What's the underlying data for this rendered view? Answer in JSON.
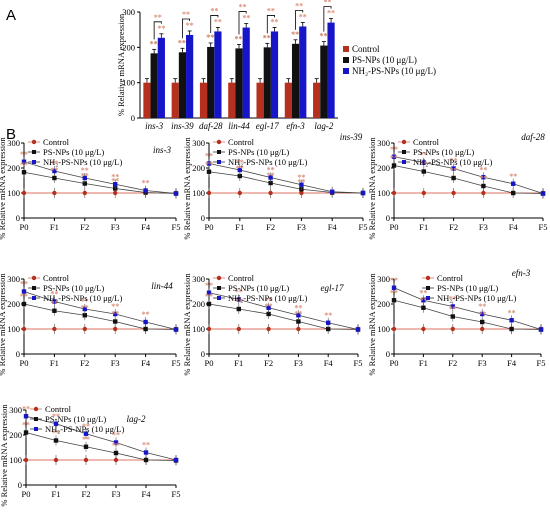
{
  "panel_a_label": "A",
  "panel_b_label": "B",
  "colors": {
    "control": "#b5301e",
    "ps": "#111111",
    "nh2": "#1616c8",
    "star_control_ps": "#c97a5a",
    "star_ps_nh2": "#9ab86a",
    "star_default": "#d9907a",
    "connector": "#555555",
    "control_line": "#e07060"
  },
  "chart_data": [
    {
      "type": "bar",
      "panel": "A",
      "ylabel": "% Relative mRNA expression",
      "ylim": [
        0,
        300
      ],
      "yticks": [
        0,
        100,
        200,
        300
      ],
      "categories": [
        "ins-3",
        "ins-39",
        "daf-28",
        "lin-44",
        "egl-17",
        "efn-3",
        "lag-2"
      ],
      "series": [
        {
          "name": "Control",
          "key": "control",
          "values": [
            100,
            100,
            100,
            100,
            100,
            100,
            100
          ]
        },
        {
          "name": "PS-NPs (10 μg/L)",
          "key": "ps",
          "values": [
            183,
            186,
            201,
            197,
            200,
            210,
            205
          ]
        },
        {
          "name": "NH₂-PS-NPs (10 μg/L)",
          "key": "nh2",
          "values": [
            227,
            235,
            245,
            256,
            245,
            259,
            270
          ]
        }
      ],
      "legend": "right"
    },
    {
      "type": "line",
      "panel": "B",
      "gene": "ins-3",
      "ylabel": "% Relative mRNA expression",
      "ylim": [
        0,
        300
      ],
      "yticks": [
        0,
        100,
        200,
        300
      ],
      "x": [
        "P0",
        "F1",
        "F2",
        "F3",
        "F4",
        "F5"
      ],
      "series": [
        {
          "name": "Control",
          "key": "control",
          "values": [
            100,
            100,
            100,
            100,
            100,
            100
          ]
        },
        {
          "name": "PS-NPs (10 μg/L)",
          "key": "ps",
          "values": [
            183,
            160,
            138,
            118,
            102,
            98
          ]
        },
        {
          "name": "NH₂-PS-NPs (10 μg/L)",
          "key": "nh2",
          "values": [
            225,
            188,
            160,
            135,
            110,
            98
          ]
        }
      ],
      "legend": "top-left"
    },
    {
      "type": "line",
      "panel": "B",
      "gene": "ins-39",
      "ylabel": "% Relative mRNA expression",
      "ylim": [
        0,
        300
      ],
      "yticks": [
        0,
        100,
        200,
        300
      ],
      "x": [
        "P0",
        "F1",
        "F2",
        "F3",
        "F4",
        "F5"
      ],
      "series": [
        {
          "name": "Control",
          "key": "control",
          "values": [
            100,
            100,
            100,
            100,
            100,
            100
          ]
        },
        {
          "name": "PS-NPs (10 μg/L)",
          "key": "ps",
          "values": [
            185,
            168,
            140,
            115,
            102,
            100
          ]
        },
        {
          "name": "NH₂-PS-NPs (10 μg/L)",
          "key": "nh2",
          "values": [
            218,
            192,
            162,
            133,
            105,
            100
          ]
        }
      ],
      "legend": "top-left"
    },
    {
      "type": "line",
      "panel": "B",
      "gene": "daf-28",
      "ylabel": "% Relative mRNA expression",
      "ylim": [
        0,
        300
      ],
      "yticks": [
        0,
        100,
        200,
        300
      ],
      "x": [
        "P0",
        "F1",
        "F2",
        "F3",
        "F4",
        "F5"
      ],
      "series": [
        {
          "name": "Control",
          "key": "control",
          "values": [
            100,
            100,
            100,
            100,
            100,
            100
          ]
        },
        {
          "name": "PS-NPs (10 μg/L)",
          "key": "ps",
          "values": [
            210,
            186,
            160,
            128,
            100,
            98
          ]
        },
        {
          "name": "NH₂-PS-NPs (10 μg/L)",
          "key": "nh2",
          "values": [
            245,
            222,
            198,
            163,
            137,
            98
          ]
        }
      ],
      "legend": "top-left"
    },
    {
      "type": "line",
      "panel": "B",
      "gene": "lin-44",
      "ylabel": "% Relative mRNA expression",
      "ylim": [
        0,
        300
      ],
      "yticks": [
        0,
        100,
        200,
        300
      ],
      "x": [
        "P0",
        "F1",
        "F2",
        "F3",
        "F4",
        "F5"
      ],
      "series": [
        {
          "name": "Control",
          "key": "control",
          "values": [
            100,
            100,
            100,
            100,
            100,
            100
          ]
        },
        {
          "name": "PS-NPs (10 μg/L)",
          "key": "ps",
          "values": [
            200,
            173,
            155,
            130,
            100,
            98
          ]
        },
        {
          "name": "NH₂-PS-NPs (10 μg/L)",
          "key": "nh2",
          "values": [
            250,
            210,
            180,
            160,
            128,
            98
          ]
        }
      ],
      "legend": "top-left"
    },
    {
      "type": "line",
      "panel": "B",
      "gene": "egl-17",
      "ylabel": "% Relative mRNA expression",
      "ylim": [
        0,
        300
      ],
      "yticks": [
        0,
        100,
        200,
        300
      ],
      "x": [
        "P0",
        "F1",
        "F2",
        "F3",
        "F4",
        "F5"
      ],
      "series": [
        {
          "name": "Control",
          "key": "control",
          "values": [
            100,
            100,
            100,
            100,
            100,
            100
          ]
        },
        {
          "name": "PS-NPs (10 μg/L)",
          "key": "ps",
          "values": [
            200,
            180,
            160,
            130,
            100,
            98
          ]
        },
        {
          "name": "NH₂-PS-NPs (10 μg/L)",
          "key": "nh2",
          "values": [
            245,
            218,
            185,
            155,
            125,
            98
          ]
        }
      ],
      "legend": "top-left"
    },
    {
      "type": "line",
      "panel": "B",
      "gene": "efn-3",
      "ylabel": "% Relative mRNA expression",
      "ylim": [
        0,
        300
      ],
      "yticks": [
        0,
        100,
        200,
        300
      ],
      "x": [
        "P0",
        "F1",
        "F2",
        "F3",
        "F4",
        "F5"
      ],
      "series": [
        {
          "name": "Control",
          "key": "control",
          "values": [
            100,
            100,
            100,
            100,
            100,
            100
          ]
        },
        {
          "name": "PS-NPs (10 μg/L)",
          "key": "ps",
          "values": [
            215,
            185,
            150,
            128,
            100,
            98
          ]
        },
        {
          "name": "NH₂-PS-NPs (10 μg/L)",
          "key": "nh2",
          "values": [
            265,
            215,
            190,
            160,
            135,
            98
          ]
        }
      ],
      "legend": "top-right"
    },
    {
      "type": "line",
      "panel": "B",
      "gene": "lag-2",
      "ylabel": "% Relative mRNA expression",
      "ylim": [
        0,
        300
      ],
      "yticks": [
        0,
        100,
        200,
        300
      ],
      "x": [
        "P0",
        "F1",
        "F2",
        "F3",
        "F4",
        "F5"
      ],
      "series": [
        {
          "name": "Control",
          "key": "control",
          "values": [
            100,
            100,
            100,
            100,
            100,
            100
          ]
        },
        {
          "name": "PS-NPs (10 μg/L)",
          "key": "ps",
          "values": [
            210,
            178,
            153,
            128,
            100,
            98
          ]
        },
        {
          "name": "NH₂-PS-NPs (10 μg/L)",
          "key": "nh2",
          "values": [
            275,
            245,
            205,
            170,
            130,
            100
          ]
        }
      ],
      "legend": "top-left"
    }
  ]
}
